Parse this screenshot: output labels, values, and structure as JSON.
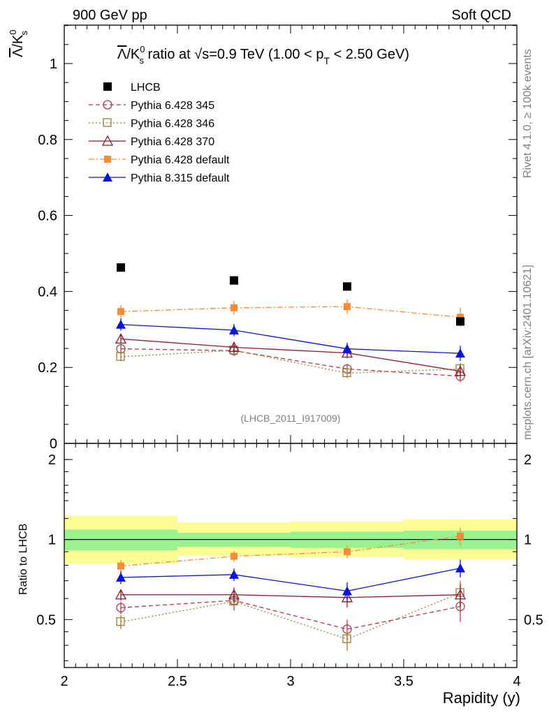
{
  "header": {
    "left": "900 GeV pp",
    "right": "Soft QCD"
  },
  "side_text": {
    "rivet": "Rivet 4.1.0, ≥ 100k events",
    "mcplots": "mcplots.cern.ch [arXiv:2401.10621]"
  },
  "chart_data": {
    "type": "line",
    "title": "Λ̅/K⁰ₛ ratio at √s=0.9 TeV (1.00 < p_T < 2.50 GeV)",
    "title_parts": {
      "num": "Λ",
      "den": "/K",
      "den_sup": "0",
      "den_sub": "s",
      "mid": " ratio at ",
      "sqrt": "√",
      "s": "s=0.9 TeV (1.00 < p",
      "pt_sub": "T",
      "tail": " < 2.50 GeV)"
    },
    "ylabel": {
      "num": "Λ",
      "den": "/K",
      "sup": "0",
      "sub": "s"
    },
    "ratio_ylabel": "Ratio to LHCB",
    "xlabel": "Rapidity (y)",
    "reference": "(LHCB_2011_I917009)",
    "xlim": [
      2,
      4
    ],
    "ylim": [
      0,
      1.1
    ],
    "ratio_ylim": [
      0.33,
      2.3
    ],
    "x": [
      2.25,
      2.75,
      3.25,
      3.75
    ],
    "bin_edges": [
      2.0,
      2.5,
      3.0,
      3.5,
      4.0
    ],
    "x_ticks": [
      "2",
      "2.5",
      "3",
      "3.5",
      "4"
    ],
    "y_ticks": [
      "0",
      "0.2",
      "0.4",
      "0.6",
      "0.8",
      "1"
    ],
    "ratio_ticks": [
      "0.5",
      "1",
      "2"
    ],
    "data": {
      "name": "LHCB",
      "color": "#000000",
      "values": [
        0.463,
        0.429,
        0.413,
        0.321
      ],
      "band_inner": [
        [
          0.91,
          1.09
        ],
        [
          0.94,
          1.06
        ],
        [
          0.93,
          1.07
        ],
        [
          0.92,
          1.08
        ]
      ],
      "band_outer": [
        [
          0.81,
          1.23
        ],
        [
          0.87,
          1.16
        ],
        [
          0.86,
          1.17
        ],
        [
          0.84,
          1.19
        ]
      ]
    },
    "series": [
      {
        "name": "Pythia 6.428 345",
        "color": "#b03a4a",
        "marker": "circle-open",
        "dash": "6,4",
        "values": [
          0.249,
          0.244,
          0.196,
          0.177
        ],
        "errors": [
          0.012,
          0.014,
          0.013,
          0.016
        ],
        "ratio": [
          0.554,
          0.59,
          0.46,
          0.56
        ],
        "ratio_errors": [
          0.03,
          0.05,
          0.04,
          0.07
        ]
      },
      {
        "name": "Pythia 6.428 346",
        "color": "#a07b37",
        "marker": "square-open",
        "dash": "2,3",
        "values": [
          0.228,
          0.245,
          0.185,
          0.196
        ],
        "errors": [
          0.012,
          0.014,
          0.013,
          0.016
        ],
        "ratio": [
          0.49,
          0.585,
          0.422,
          0.63
        ],
        "ratio_errors": [
          0.03,
          0.04,
          0.04,
          0.07
        ]
      },
      {
        "name": "Pythia 6.428 370",
        "color": "#8b1a2b",
        "marker": "triangle-open",
        "dash": "",
        "values": [
          0.275,
          0.253,
          0.238,
          0.19
        ],
        "errors": [
          0.013,
          0.014,
          0.014,
          0.016
        ],
        "ratio": [
          0.62,
          0.62,
          0.605,
          0.62
        ],
        "ratio_errors": [
          0.03,
          0.04,
          0.05,
          0.06
        ]
      },
      {
        "name": "Pythia 6.428 default",
        "color": "#f58c3a",
        "marker": "square-filled",
        "dash": "8,3,2,3",
        "values": [
          0.347,
          0.357,
          0.36,
          0.332
        ],
        "errors": [
          0.017,
          0.018,
          0.019,
          0.025
        ],
        "ratio": [
          0.795,
          0.865,
          0.9,
          1.03
        ],
        "ratio_errors": [
          0.04,
          0.04,
          0.05,
          0.08
        ]
      },
      {
        "name": "Pythia 8.315 default",
        "color": "#0a14d2",
        "marker": "triangle-filled",
        "dash": "",
        "values": [
          0.313,
          0.298,
          0.249,
          0.237
        ],
        "errors": [
          0.016,
          0.016,
          0.016,
          0.02
        ],
        "ratio": [
          0.72,
          0.738,
          0.64,
          0.78
        ],
        "ratio_errors": [
          0.04,
          0.04,
          0.05,
          0.06
        ]
      }
    ]
  }
}
